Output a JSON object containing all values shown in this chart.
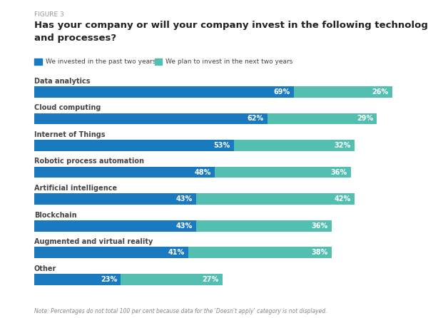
{
  "figure_label": "FIGURE 3",
  "title_line1": "Has your company or will your company invest in the following technologies",
  "title_line2": "and processes?",
  "legend": [
    {
      "label": "We invested in the past two years",
      "color": "#1a7abf"
    },
    {
      "label": "We plan to invest in the next two years",
      "color": "#4bbfb0"
    }
  ],
  "categories": [
    "Data analytics",
    "Cloud computing",
    "Internet of Things",
    "Robotic process automation",
    "Artificial intelligence",
    "Blockchain",
    "Augmented and virtual reality",
    "Other"
  ],
  "invested": [
    69,
    62,
    53,
    48,
    43,
    43,
    41,
    23
  ],
  "plan": [
    26,
    29,
    32,
    36,
    42,
    36,
    38,
    27
  ],
  "bar_color_invested": "#1a7abf",
  "bar_color_plan": "#52bfb0",
  "note": "Note: Percentages do not total 100 per cent because data for the 'Doesn't apply' category is not displayed.",
  "background_color": "#ffffff",
  "text_color_white": "#ffffff",
  "label_color": "#444444",
  "figure_label_color": "#999999",
  "title_color": "#222222",
  "note_color": "#888888"
}
